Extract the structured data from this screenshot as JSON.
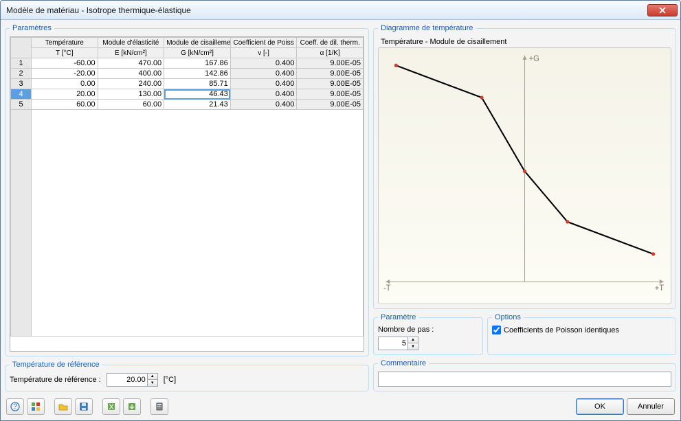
{
  "window": {
    "title": "Modèle de matériau - Isotrope thermique-élastique"
  },
  "params": {
    "legend": "Paramètres",
    "headers": {
      "rownum": "",
      "temp1": "Température",
      "temp2": "T [°C]",
      "emod1": "Module d'élasticité",
      "emod2": "E [kN/cm²]",
      "gmod1": "Module de cisailleme",
      "gmod2": "G [kN/cm²]",
      "poiss1": "Coefficient de Poiss",
      "poiss2": "ν [-]",
      "alpha1": "Coeff. de dil. therm.",
      "alpha2": "α [1/K]"
    },
    "rows": [
      {
        "n": "1",
        "T": "-60.00",
        "E": "470.00",
        "G": "167.86",
        "nu": "0.400",
        "a": "9.00E-05"
      },
      {
        "n": "2",
        "T": "-20.00",
        "E": "400.00",
        "G": "142.86",
        "nu": "0.400",
        "a": "9.00E-05"
      },
      {
        "n": "3",
        "T": "0.00",
        "E": "240.00",
        "G": "85.71",
        "nu": "0.400",
        "a": "9.00E-05"
      },
      {
        "n": "4",
        "T": "20.00",
        "E": "130.00",
        "G": "46.43",
        "nu": "0.400",
        "a": "9.00E-05"
      },
      {
        "n": "5",
        "T": "60.00",
        "E": "60.00",
        "G": "21.43",
        "nu": "0.400",
        "a": "9.00E-05"
      }
    ],
    "selected_row": 3,
    "editing_cell": {
      "row": 3,
      "col": "G"
    }
  },
  "chart": {
    "legend": "Diagramme de température",
    "title": "Température - Module de cisaillement",
    "axis_labels": {
      "top": "+G",
      "left": "-T",
      "right": "+T"
    },
    "x_range": [
      -60,
      60
    ],
    "y_range": [
      0,
      170
    ],
    "points": [
      {
        "x": -60,
        "y": 167.86
      },
      {
        "x": -20,
        "y": 142.86
      },
      {
        "x": 0,
        "y": 85.71
      },
      {
        "x": 20,
        "y": 46.43
      },
      {
        "x": 60,
        "y": 21.43
      }
    ],
    "line_color": "#000000",
    "line_width": 2,
    "point_fill": "#d83a2a",
    "point_radius": 2.5,
    "axis_color": "#a8a290",
    "background_top": "#f5f3e8",
    "background_bottom": "#fdfcf5",
    "label_color": "#7a7564"
  },
  "parametre": {
    "legend": "Paramètre",
    "label": "Nombre de pas :",
    "value": "5"
  },
  "options": {
    "legend": "Options",
    "poisson_label": "Coefficients de Poisson identiques",
    "poisson_checked": true
  },
  "tref": {
    "legend": "Température de référence",
    "label": "Température de référence :",
    "value": "20.00",
    "unit": "[°C]"
  },
  "comment": {
    "legend": "Commentaire",
    "value": ""
  },
  "buttons": {
    "ok": "OK",
    "cancel": "Annuler"
  }
}
